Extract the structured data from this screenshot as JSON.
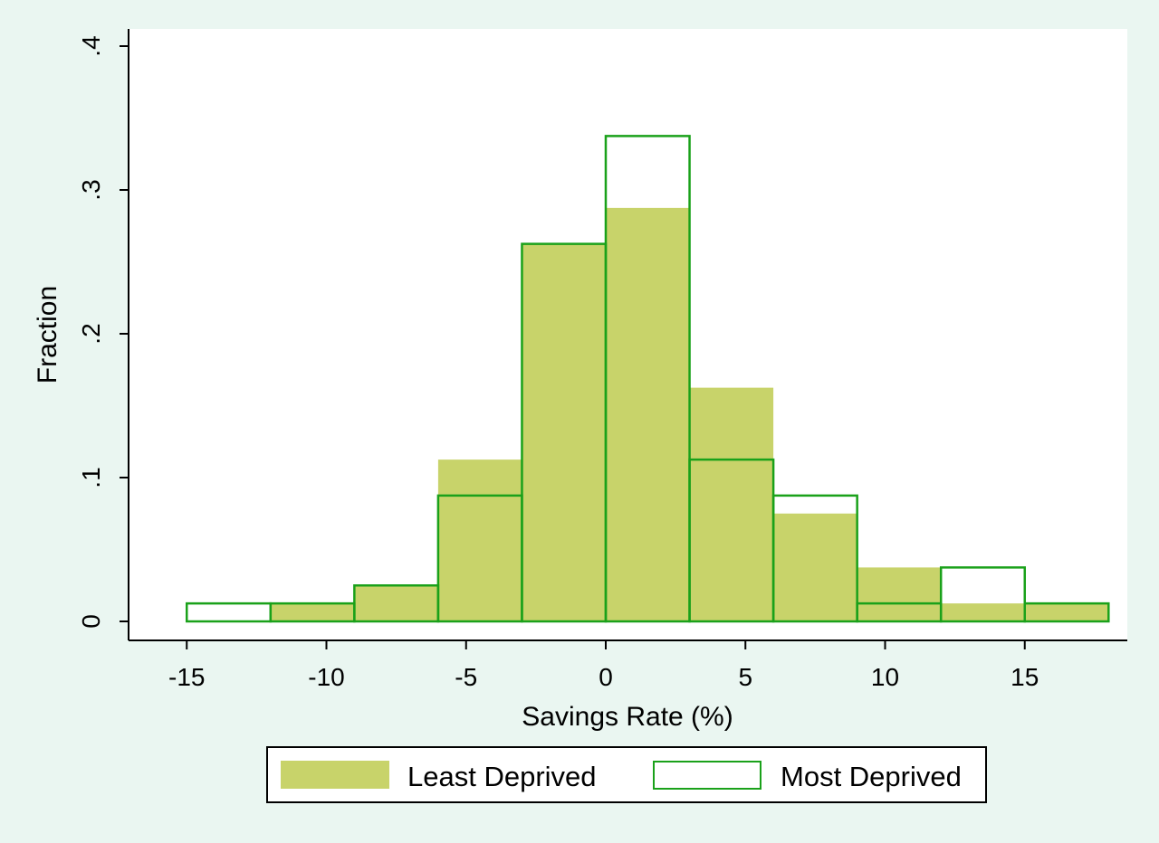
{
  "colors": {
    "background": "#eaf6f1",
    "plot_background": "#ffffff",
    "least_fill": "#c8d36a",
    "most_outline": "#1aa11a"
  },
  "chart_data": {
    "type": "bar",
    "subtype": "overlaid histogram",
    "xlabel": "Savings Rate (%)",
    "ylabel": "Fraction",
    "xlim": [
      -17,
      19
    ],
    "ylim": [
      0,
      0.4
    ],
    "xticks": [
      -15,
      -10,
      -5,
      0,
      5,
      10,
      15
    ],
    "xtick_labels": [
      "-15",
      "-10",
      "-5",
      "0",
      "5",
      "10",
      "15"
    ],
    "yticks": [
      0,
      0.1,
      0.2,
      0.3,
      0.4
    ],
    "ytick_labels": [
      "0",
      ".1",
      ".2",
      ".3",
      ".4"
    ],
    "bin_width": 3,
    "grid": false,
    "legend_position": "bottom",
    "series": [
      {
        "name": "Least Deprived",
        "style": "filled",
        "bins": [
          {
            "x0": -12,
            "x1": -9,
            "value": 0.0125
          },
          {
            "x0": -9,
            "x1": -6,
            "value": 0.025
          },
          {
            "x0": -6,
            "x1": -3,
            "value": 0.1125
          },
          {
            "x0": -3,
            "x1": 0,
            "value": 0.2625
          },
          {
            "x0": 0,
            "x1": 3,
            "value": 0.2875
          },
          {
            "x0": 3,
            "x1": 6,
            "value": 0.1625
          },
          {
            "x0": 6,
            "x1": 9,
            "value": 0.075
          },
          {
            "x0": 9,
            "x1": 12,
            "value": 0.0375
          },
          {
            "x0": 12,
            "x1": 15,
            "value": 0.0125
          },
          {
            "x0": 15,
            "x1": 18,
            "value": 0.0125
          }
        ]
      },
      {
        "name": "Most Deprived",
        "style": "outline",
        "bins": [
          {
            "x0": -15,
            "x1": -12,
            "value": 0.0125
          },
          {
            "x0": -12,
            "x1": -9,
            "value": 0.0125
          },
          {
            "x0": -9,
            "x1": -6,
            "value": 0.025
          },
          {
            "x0": -6,
            "x1": -3,
            "value": 0.0875
          },
          {
            "x0": -3,
            "x1": 0,
            "value": 0.2625
          },
          {
            "x0": 0,
            "x1": 3,
            "value": 0.3375
          },
          {
            "x0": 3,
            "x1": 6,
            "value": 0.1125
          },
          {
            "x0": 6,
            "x1": 9,
            "value": 0.0875
          },
          {
            "x0": 9,
            "x1": 12,
            "value": 0.0125
          },
          {
            "x0": 12,
            "x1": 15,
            "value": 0.0375
          },
          {
            "x0": 15,
            "x1": 18,
            "value": 0.0125
          }
        ]
      }
    ]
  }
}
